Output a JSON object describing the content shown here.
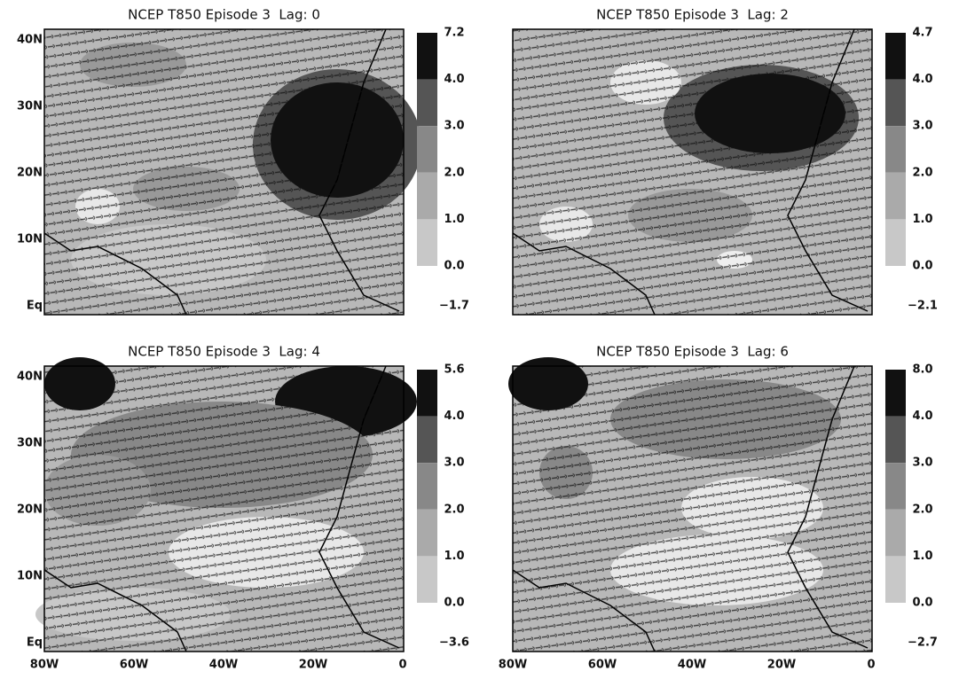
{
  "panels": [
    {
      "title": "NCEP T850 Episode 3  Lag: 0",
      "colorbar": [
        "7.2",
        "4.0",
        "3.0",
        "2.0",
        "1.0",
        "0.0",
        "−1.7"
      ]
    },
    {
      "title": "NCEP T850 Episode 3  Lag: 2",
      "colorbar": [
        "4.7",
        "4.0",
        "3.0",
        "2.0",
        "1.0",
        "0.0",
        "−2.1"
      ]
    },
    {
      "title": "NCEP T850 Episode 3  Lag: 4",
      "colorbar": [
        "5.6",
        "4.0",
        "3.0",
        "2.0",
        "1.0",
        "0.0",
        "−3.6"
      ]
    },
    {
      "title": "NCEP T850 Episode 3  Lag: 6",
      "colorbar": [
        "8.0",
        "4.0",
        "3.0",
        "2.0",
        "1.0",
        "0.0",
        "−2.7"
      ]
    }
  ],
  "y_axis_labels": [
    "40N",
    "30N",
    "20N",
    "10N",
    "Eq"
  ],
  "x_axis_labels": [
    "80W",
    "60W",
    "40W",
    "20W",
    "0"
  ]
}
